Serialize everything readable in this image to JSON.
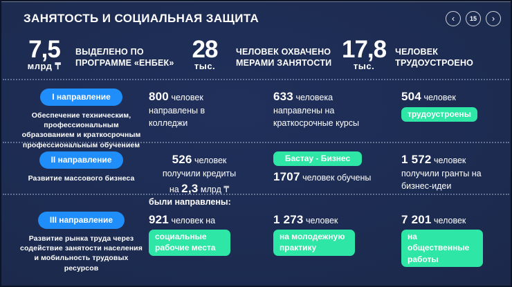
{
  "slide": {
    "title": "ЗАНЯТОСТЬ И СОЦИАЛЬНАЯ ЗАЩИТА",
    "nav": {
      "prev_icon": "‹",
      "page": "15",
      "next_icon": "›"
    }
  },
  "colors": {
    "background": "#1c2a4e",
    "accent_blue": "#1f8efa",
    "accent_green": "#2ee6a6"
  },
  "kpis": [
    {
      "value": "7,5",
      "unit": "млрд ₸",
      "label": "ВЫДЕЛЕНО ПО\nПРОГРАММЕ «ЕНБЕК»"
    },
    {
      "value": "28",
      "unit": "тыс.",
      "label": "ЧЕЛОВЕК ОХВАЧЕНО\nМЕРАМИ ЗАНЯТОСТИ"
    },
    {
      "value": "17,8",
      "unit": "тыс.",
      "label": "ЧЕЛОВЕК\nТРУДОУСТРОЕНО"
    }
  ],
  "sections": [
    {
      "pill": "I направление",
      "description": "Обеспечение техническим, профессиональным образованием и краткосрочным профессиональным обучением",
      "cells": [
        {
          "number": "800",
          "text": "человек направлены в колледжи"
        },
        {
          "number": "633",
          "text": "человека направлены на краткосрочные курсы"
        },
        {
          "number": "504",
          "text": "человек",
          "badge": "трудоустроены"
        }
      ]
    },
    {
      "pill": "II направление",
      "description": "Развитие массового бизнеса",
      "cells": [
        {
          "number": "526",
          "text_a": "человек",
          "text_b": "получили кредиты",
          "text_c": "на",
          "number2": "2,3",
          "text_d": "млрд ₸"
        },
        {
          "badge": "Бастау - Бизнес",
          "number": "1707",
          "text": "человек обучены"
        },
        {
          "number": "1 572",
          "text": "человек получили гранты на бизнес-идеи"
        }
      ]
    },
    {
      "pill": "III направление",
      "description": "Развитие рынка труда через содействие занятости населения и мобильность трудовых ресурсов",
      "note": "были направлены:",
      "cells": [
        {
          "number": "921",
          "text": "человек на",
          "badge": "социальные рабочие места"
        },
        {
          "number": "1 273",
          "text": "человек",
          "badge": "на молодежную практику"
        },
        {
          "number": "7 201",
          "text": "человек",
          "badge": "на общественные работы"
        }
      ]
    }
  ]
}
